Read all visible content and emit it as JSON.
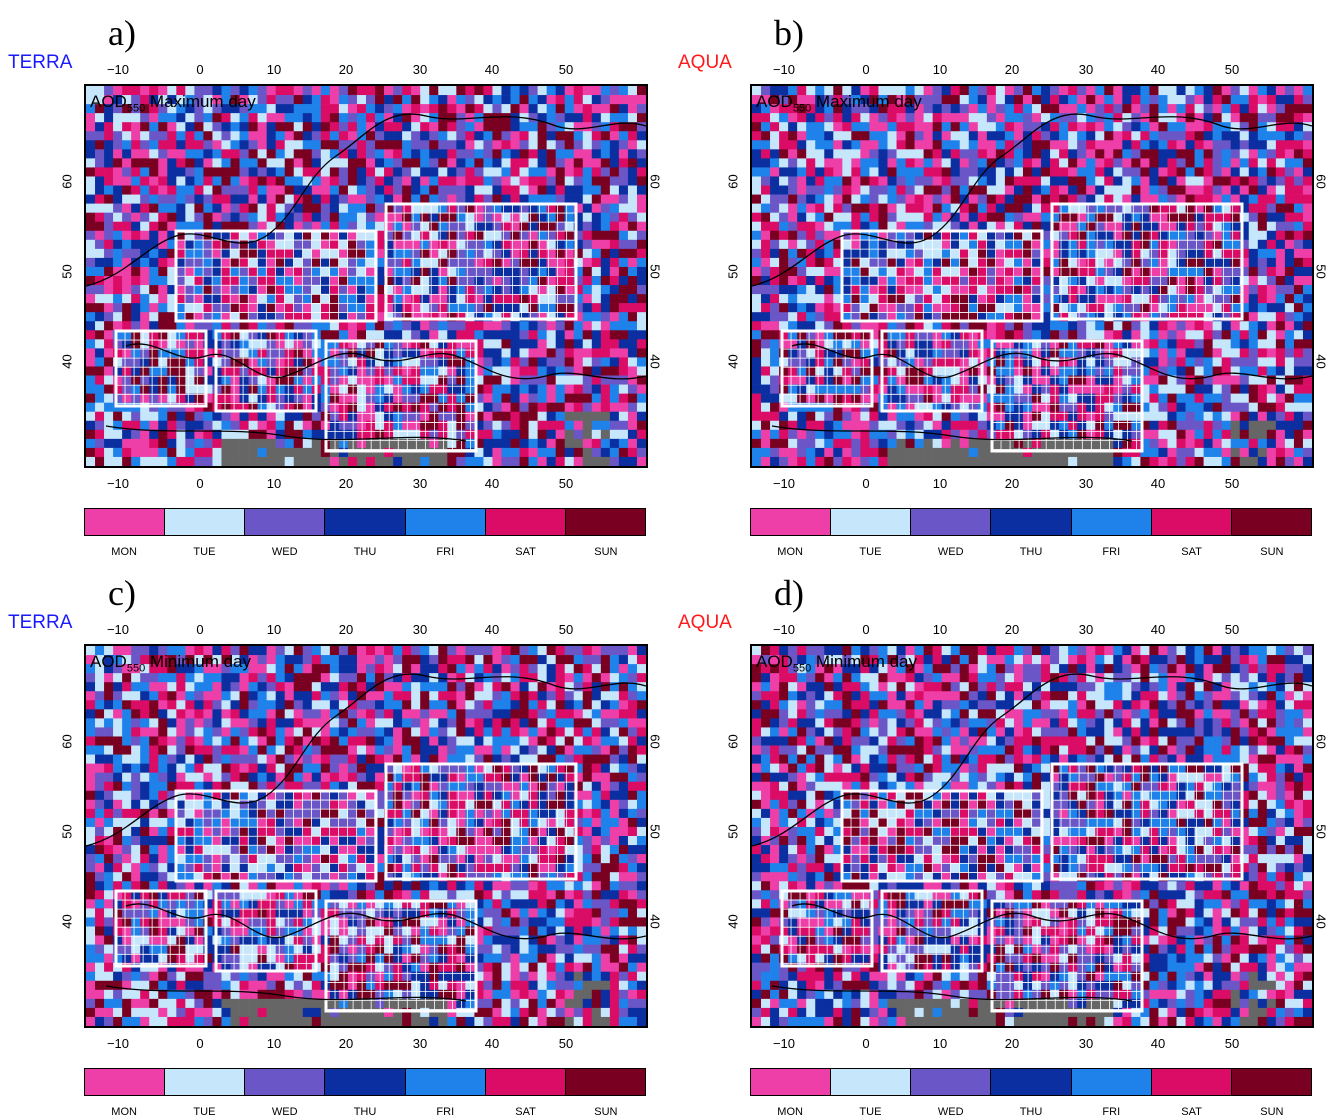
{
  "panels": [
    {
      "letter": "a)",
      "satellite": "TERRA",
      "sat_color": "#1a1aff",
      "title_main": "AOD",
      "title_sub": "550",
      "title_rest": " Maximum day",
      "seed": 11
    },
    {
      "letter": "b)",
      "satellite": "AQUA",
      "sat_color": "#ff1a1a",
      "title_main": "AOD",
      "title_sub": "550",
      "title_rest": " Maximum day",
      "seed": 23
    },
    {
      "letter": "c)",
      "satellite": "TERRA",
      "sat_color": "#1a1aff",
      "title_main": "AOD",
      "title_sub": "550",
      "title_rest": " Minimum day",
      "seed": 37
    },
    {
      "letter": "d)",
      "satellite": "AQUA",
      "sat_color": "#ff1a1a",
      "title_main": "AOD",
      "title_sub": "550",
      "title_rest": " Minimum day",
      "seed": 51
    }
  ],
  "lon_ticks": [
    "−10",
    "0",
    "10",
    "20",
    "30",
    "40",
    "50"
  ],
  "lat_ticks": [
    "60",
    "50",
    "40"
  ],
  "legend": [
    {
      "label": "MON",
      "color": "#ee3fa8"
    },
    {
      "label": "TUE",
      "color": "#c6e7fb"
    },
    {
      "label": "WED",
      "color": "#6a56c7"
    },
    {
      "label": "THU",
      "color": "#0b2fa0"
    },
    {
      "label": "FRI",
      "color": "#1e82ea"
    },
    {
      "label": "SAT",
      "color": "#db0c66"
    },
    {
      "label": "SUN",
      "color": "#7a0022"
    }
  ],
  "land_color": "#666666"
}
